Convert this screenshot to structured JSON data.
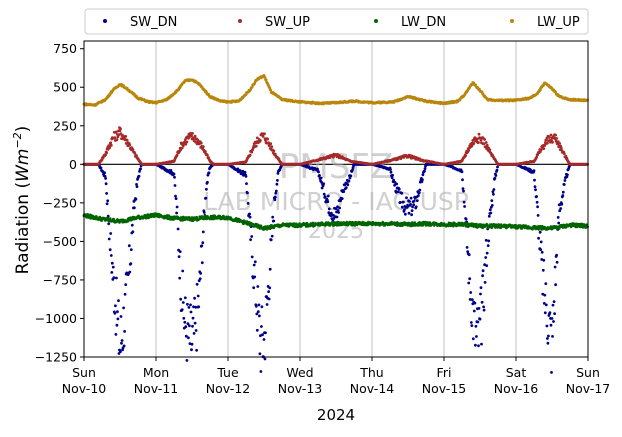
{
  "chart_data": {
    "type": "scatter",
    "title": "",
    "xlabel": "2024",
    "ylabel": "Radiation (Wm⁻²)",
    "ylabel_main": "Radiation (",
    "ylabel_unit": "Wm",
    "ylabel_exp": "−2",
    "ylabel_close": ")",
    "xlim": [
      0,
      7
    ],
    "ylim": [
      -1250,
      800
    ],
    "grid": "vertical",
    "legend_position": "top",
    "x_ticks": [
      {
        "value": 0,
        "day": "Sun",
        "date": "Nov-10"
      },
      {
        "value": 1,
        "day": "Mon",
        "date": "Nov-11"
      },
      {
        "value": 2,
        "day": "Tue",
        "date": "Nov-12"
      },
      {
        "value": 3,
        "day": "Wed",
        "date": "Nov-13"
      },
      {
        "value": 4,
        "day": "Thu",
        "date": "Nov-14"
      },
      {
        "value": 5,
        "day": "Fri",
        "date": "Nov-15"
      },
      {
        "value": 6,
        "day": "Sat",
        "date": "Nov-16"
      },
      {
        "value": 7,
        "day": "Sun",
        "date": "Nov-17"
      }
    ],
    "y_ticks": [
      {
        "value": 750,
        "label": "750"
      },
      {
        "value": 500,
        "label": "500"
      },
      {
        "value": 250,
        "label": "250"
      },
      {
        "value": 0,
        "label": "0"
      },
      {
        "value": -250,
        "label": "−250"
      },
      {
        "value": -500,
        "label": "−500"
      },
      {
        "value": -750,
        "label": "−750"
      },
      {
        "value": -1000,
        "label": "−1000"
      },
      {
        "value": -1250,
        "label": "−1250"
      }
    ],
    "watermark": {
      "line1": "PMSFZ",
      "line2": "LAB MICRO - IAG USP",
      "line3": "2025"
    },
    "series": [
      {
        "name": "SW_DN",
        "color": "#00008b",
        "x": [
          0.0,
          0.2,
          0.3,
          0.35,
          0.4,
          0.45,
          0.5,
          0.55,
          0.6,
          0.65,
          0.7,
          0.75,
          0.8,
          1.0,
          1.25,
          1.3,
          1.35,
          1.4,
          1.45,
          1.5,
          1.55,
          1.6,
          1.65,
          1.7,
          1.75,
          1.8,
          2.0,
          2.25,
          2.3,
          2.35,
          2.4,
          2.45,
          2.5,
          2.55,
          2.6,
          2.65,
          2.7,
          2.75,
          3.0,
          3.25,
          3.3,
          3.4,
          3.5,
          3.6,
          3.7,
          3.75,
          4.0,
          4.25,
          4.3,
          4.4,
          4.5,
          4.6,
          4.7,
          4.75,
          5.0,
          5.25,
          5.3,
          5.35,
          5.4,
          5.45,
          5.5,
          5.55,
          5.6,
          5.7,
          5.75,
          6.0,
          6.25,
          6.3,
          6.35,
          6.4,
          6.45,
          6.5,
          6.55,
          6.6,
          6.7,
          6.75,
          7.0
        ],
        "y": [
          0,
          0,
          -80,
          -400,
          -700,
          -950,
          -1180,
          -1020,
          -820,
          -560,
          -260,
          -90,
          0,
          0,
          -60,
          -380,
          -780,
          -1020,
          -1100,
          -1140,
          -1060,
          -830,
          -470,
          -140,
          -20,
          0,
          0,
          -70,
          -380,
          -640,
          -880,
          -1130,
          -1140,
          -860,
          -540,
          -210,
          -50,
          0,
          0,
          -40,
          -120,
          -260,
          -340,
          -160,
          -80,
          0,
          0,
          -30,
          -110,
          -230,
          -290,
          -260,
          -90,
          0,
          0,
          -40,
          -360,
          -700,
          -950,
          -1130,
          -1080,
          -820,
          -500,
          -110,
          0,
          0,
          -50,
          -310,
          -620,
          -860,
          -1000,
          -1160,
          -700,
          -300,
          -80,
          0,
          0
        ]
      },
      {
        "name": "SW_UP",
        "color": "#a52a2a",
        "x": [
          0.0,
          0.2,
          0.3,
          0.4,
          0.5,
          0.6,
          0.7,
          0.8,
          1.0,
          1.25,
          1.35,
          1.45,
          1.5,
          1.55,
          1.65,
          1.75,
          1.8,
          2.0,
          2.25,
          2.35,
          2.45,
          2.5,
          2.55,
          2.65,
          2.75,
          3.0,
          3.3,
          3.5,
          3.7,
          4.0,
          4.3,
          4.5,
          4.7,
          5.0,
          5.25,
          5.35,
          5.45,
          5.55,
          5.65,
          5.75,
          6.0,
          6.25,
          6.35,
          6.45,
          6.55,
          6.65,
          6.75,
          7.0
        ],
        "y": [
          0,
          0,
          70,
          170,
          210,
          150,
          70,
          0,
          0,
          20,
          120,
          175,
          180,
          170,
          110,
          20,
          0,
          0,
          15,
          110,
          180,
          185,
          150,
          70,
          0,
          0,
          35,
          60,
          20,
          0,
          30,
          55,
          25,
          0,
          20,
          110,
          175,
          155,
          70,
          0,
          0,
          20,
          100,
          160,
          175,
          80,
          0,
          0
        ]
      },
      {
        "name": "LW_DN",
        "color": "#006400",
        "x": [
          0.0,
          0.25,
          0.5,
          0.75,
          1.0,
          1.25,
          1.5,
          1.75,
          2.0,
          2.25,
          2.5,
          2.75,
          3.0,
          3.25,
          3.5,
          3.75,
          4.0,
          4.25,
          4.5,
          4.75,
          5.0,
          5.25,
          5.5,
          5.75,
          6.0,
          6.25,
          6.5,
          6.75,
          7.0
        ],
        "y": [
          -330,
          -355,
          -370,
          -345,
          -330,
          -350,
          -355,
          -345,
          -345,
          -380,
          -415,
          -395,
          -395,
          -390,
          -385,
          -385,
          -385,
          -385,
          -390,
          -385,
          -390,
          -390,
          -400,
          -400,
          -405,
          -410,
          -415,
          -395,
          -400
        ]
      },
      {
        "name": "LW_UP",
        "color": "#b8860b",
        "x": [
          0.0,
          0.15,
          0.3,
          0.4,
          0.5,
          0.6,
          0.75,
          0.9,
          1.0,
          1.15,
          1.3,
          1.4,
          1.5,
          1.6,
          1.75,
          1.9,
          2.0,
          2.15,
          2.3,
          2.4,
          2.5,
          2.6,
          2.75,
          3.0,
          3.3,
          3.5,
          3.75,
          4.0,
          4.3,
          4.5,
          4.75,
          5.0,
          5.2,
          5.3,
          5.4,
          5.5,
          5.6,
          5.75,
          6.0,
          6.2,
          6.3,
          6.4,
          6.5,
          6.6,
          6.75,
          7.0
        ],
        "y": [
          390,
          385,
          420,
          480,
          520,
          490,
          430,
          405,
          400,
          420,
          480,
          540,
          550,
          520,
          440,
          410,
          405,
          410,
          480,
          550,
          575,
          470,
          420,
          405,
          395,
          400,
          410,
          400,
          405,
          440,
          410,
          395,
          410,
          460,
          530,
          480,
          420,
          415,
          415,
          430,
          460,
          530,
          490,
          440,
          420,
          415
        ]
      }
    ]
  }
}
